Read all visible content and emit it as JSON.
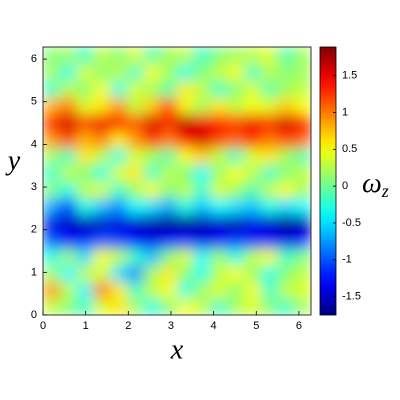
{
  "chart_data": {
    "type": "heatmap",
    "xlabel": "x",
    "ylabel": "y",
    "colorbar_label": {
      "symbol": "ω",
      "subscript": "z"
    },
    "colormap": "jet",
    "xlim": [
      0,
      6.283
    ],
    "ylim": [
      0,
      6.283
    ],
    "xticks": [
      0,
      1,
      2,
      3,
      4,
      5,
      6
    ],
    "yticks": [
      0,
      1,
      2,
      3,
      4,
      5,
      6
    ],
    "clim": [
      -1.75,
      1.89
    ],
    "cticks": [
      -1.5,
      -1,
      -0.5,
      0,
      0.5,
      1,
      1.5
    ],
    "x": [
      0.2,
      0.59,
      0.98,
      1.37,
      1.77,
      2.16,
      2.55,
      2.94,
      3.34,
      3.73,
      4.12,
      4.52,
      4.91,
      5.3,
      5.69,
      6.09
    ],
    "y": [
      0.2,
      0.59,
      0.98,
      1.37,
      1.77,
      2.16,
      2.55,
      2.94,
      3.34,
      3.73,
      4.12,
      4.52,
      4.91,
      5.3,
      5.69,
      6.09
    ],
    "z": [
      [
        0.3,
        0.1,
        -0.2,
        0.4,
        0.6,
        0.2,
        -0.3,
        0.1,
        0.5,
        0.3,
        -0.2,
        0.2,
        0.4,
        0.1,
        -0.2,
        0.2
      ],
      [
        0.9,
        0.3,
        -0.4,
        1.0,
        0.6,
        -0.2,
        0.3,
        0.5,
        -0.3,
        0.2,
        0.4,
        0.1,
        0.5,
        -0.2,
        0.3,
        0.4
      ],
      [
        0.2,
        -0.4,
        0.3,
        0.4,
        -0.5,
        -0.8,
        0.2,
        0.6,
        0.1,
        -0.3,
        0.3,
        0.5,
        0.2,
        -0.3,
        0.1,
        0.3
      ],
      [
        -0.3,
        0.2,
        -0.5,
        0.5,
        0.3,
        -0.2,
        -0.6,
        0.1,
        0.4,
        -0.4,
        0.2,
        -0.3,
        0.3,
        0.5,
        -0.2,
        0.1
      ],
      [
        -1.0,
        -1.3,
        -1.2,
        -1.0,
        -1.1,
        -1.3,
        -1.4,
        -1.3,
        -1.2,
        -1.4,
        -1.3,
        -1.1,
        -1.2,
        -1.3,
        -1.4,
        -1.3
      ],
      [
        -1.4,
        -1.5,
        -1.6,
        -1.5,
        -1.4,
        -1.5,
        -1.6,
        -1.7,
        -1.7,
        -1.6,
        -1.5,
        -1.6,
        -1.4,
        -1.5,
        -1.7,
        -1.6
      ],
      [
        -0.7,
        -1.1,
        -0.3,
        -0.6,
        -0.8,
        -0.4,
        -0.5,
        -0.7,
        -0.3,
        -0.6,
        -0.4,
        -0.5,
        -0.6,
        -0.3,
        -0.5,
        -0.4
      ],
      [
        0.1,
        -0.3,
        0.3,
        0.4,
        -0.2,
        0.2,
        0.5,
        0.1,
        0.3,
        -0.2,
        0.4,
        0.2,
        -0.1,
        0.3,
        0.5,
        0.2
      ],
      [
        -0.2,
        0.3,
        0.1,
        -0.3,
        0.4,
        0.6,
        -0.2,
        0.3,
        0.1,
        -0.4,
        0.2,
        0.5,
        0.3,
        -0.2,
        0.1,
        0.3
      ],
      [
        0.2,
        -0.2,
        0.6,
        0.3,
        -0.3,
        0.4,
        0.2,
        -0.1,
        0.5,
        0.7,
        0.3,
        -0.2,
        0.4,
        0.6,
        0.2,
        -0.1
      ],
      [
        0.9,
        1.2,
        0.8,
        1.0,
        0.6,
        0.9,
        1.3,
        1.0,
        1.4,
        1.6,
        1.2,
        1.1,
        1.3,
        1.0,
        1.2,
        1.1
      ],
      [
        1.3,
        1.6,
        1.2,
        1.5,
        1.4,
        1.1,
        1.6,
        1.3,
        1.7,
        1.5,
        1.4,
        1.2,
        1.5,
        1.3,
        1.6,
        1.4
      ],
      [
        0.8,
        1.0,
        0.4,
        0.6,
        0.9,
        0.3,
        0.7,
        1.2,
        0.5,
        0.2,
        0.6,
        0.3,
        0.5,
        0.4,
        0.7,
        0.5
      ],
      [
        -0.2,
        0.3,
        0.1,
        0.5,
        -0.3,
        0.4,
        0.2,
        -0.1,
        0.6,
        0.3,
        -0.2,
        0.1,
        0.4,
        -0.1,
        0.2,
        0.3
      ],
      [
        0.2,
        -0.3,
        0.4,
        0.1,
        0.3,
        -0.2,
        0.5,
        0.2,
        -0.3,
        0.1,
        0.3,
        0.5,
        -0.2,
        0.3,
        0.1,
        0.2
      ],
      [
        0.1,
        0.2,
        -0.2,
        0.3,
        0.1,
        0.4,
        -0.1,
        0.2,
        0.3,
        -0.2,
        0.1,
        0.2,
        0.3,
        0.4,
        -0.1,
        0.2
      ]
    ]
  }
}
